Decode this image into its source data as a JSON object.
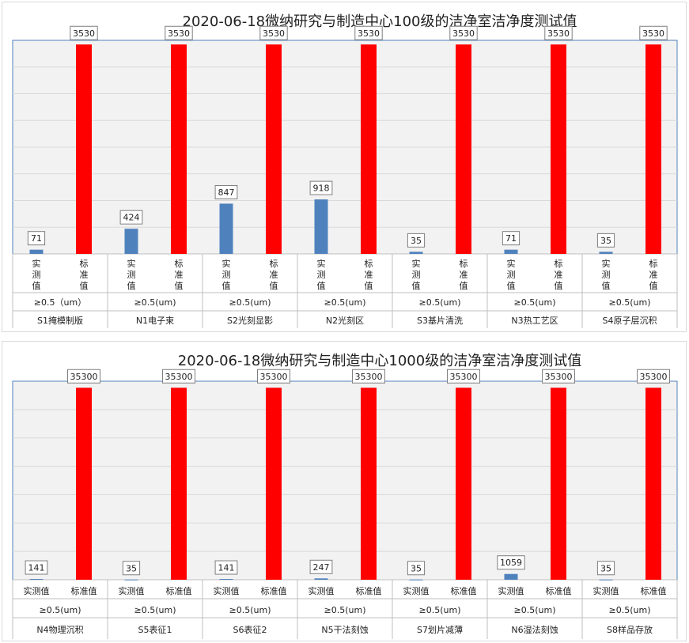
{
  "chart_data": [
    {
      "type": "bar",
      "title": "2020-06-18微纳研究与制造中心100级的洁净室洁净度测试值",
      "ylim": [
        0,
        3600
      ],
      "grid": true,
      "colors": {
        "measured": "#4f81bd",
        "standard": "#ff0000"
      },
      "groups": [
        {
          "room": "S1掩模制版",
          "particle": "≥0.5（um）",
          "labels": [
            "实测值",
            "标准值"
          ],
          "values": [
            71,
            3530
          ]
        },
        {
          "room": "N1电子束",
          "particle": "≥0.5(um)",
          "labels": [
            "实测值",
            "标准值"
          ],
          "values": [
            424,
            3530
          ]
        },
        {
          "room": "S2光刻显影",
          "particle": "≥0.5(um)",
          "labels": [
            "实测值",
            "标准值"
          ],
          "values": [
            847,
            3530
          ]
        },
        {
          "room": "N2光刻区",
          "particle": "≥0.5(um)",
          "labels": [
            "实测值",
            "标准值"
          ],
          "values": [
            918,
            3530
          ]
        },
        {
          "room": "S3基片清洗",
          "particle": "≥0.5(um)",
          "labels": [
            "实测值",
            "标准值"
          ],
          "values": [
            35,
            3530
          ]
        },
        {
          "room": "N3热工艺区",
          "particle": "≥0.5(um)",
          "labels": [
            "实测值",
            "标准值"
          ],
          "values": [
            71,
            3530
          ]
        },
        {
          "room": "S4原子层沉积",
          "particle": "≥0.5(um)",
          "labels": [
            "实测值",
            "标准值"
          ],
          "values": [
            35,
            3530
          ]
        }
      ]
    },
    {
      "type": "bar",
      "title": "2020-06-18微纳研究与制造中心1000级的洁净室洁净度测试值",
      "ylim": [
        0,
        36500
      ],
      "grid": true,
      "colors": {
        "measured": "#4f81bd",
        "standard": "#ff0000"
      },
      "groups": [
        {
          "room": "N4物理沉积",
          "particle": "≥0.5(um)",
          "labels": [
            "实测值",
            "标准值"
          ],
          "values": [
            141,
            35300
          ]
        },
        {
          "room": "S5表征1",
          "particle": "≥0.5(um)",
          "labels": [
            "实测值",
            "标准值"
          ],
          "values": [
            35,
            35300
          ]
        },
        {
          "room": "S6表征2",
          "particle": "≥0.5(um)",
          "labels": [
            "实测值",
            "标准值"
          ],
          "values": [
            141,
            35300
          ]
        },
        {
          "room": "N5干法刻蚀",
          "particle": "≥0.5(um)",
          "labels": [
            "实测值",
            "标准值"
          ],
          "values": [
            247,
            35300
          ]
        },
        {
          "room": "S7划片减薄",
          "particle": "≥0.5(um)",
          "labels": [
            "实测值",
            "标准值"
          ],
          "values": [
            35,
            35300
          ]
        },
        {
          "room": "N6湿法刻蚀",
          "particle": "≥0.5(um)",
          "labels": [
            "实测值",
            "标准值"
          ],
          "values": [
            1059,
            35300
          ]
        },
        {
          "room": "S8样品存放",
          "particle": "≥0.5(um)",
          "labels": [
            "实测值",
            "标准值"
          ],
          "values": [
            35,
            35300
          ]
        }
      ]
    }
  ]
}
